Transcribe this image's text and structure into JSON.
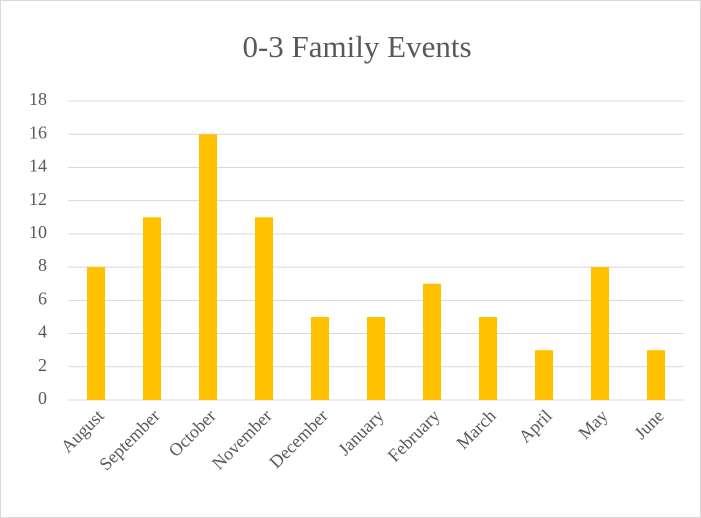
{
  "chart_data": {
    "type": "bar",
    "title": "0-3 Family Events",
    "categories": [
      "August",
      "September",
      "October",
      "November",
      "December",
      "January",
      "February",
      "March",
      "April",
      "May",
      "June"
    ],
    "values": [
      8,
      11,
      16,
      11,
      5,
      5,
      7,
      5,
      3,
      8,
      3
    ],
    "color": "#ffc000",
    "ylim": [
      0,
      18
    ],
    "yticks": [
      0,
      2,
      4,
      6,
      8,
      10,
      12,
      14,
      16,
      18
    ],
    "grid": true
  }
}
